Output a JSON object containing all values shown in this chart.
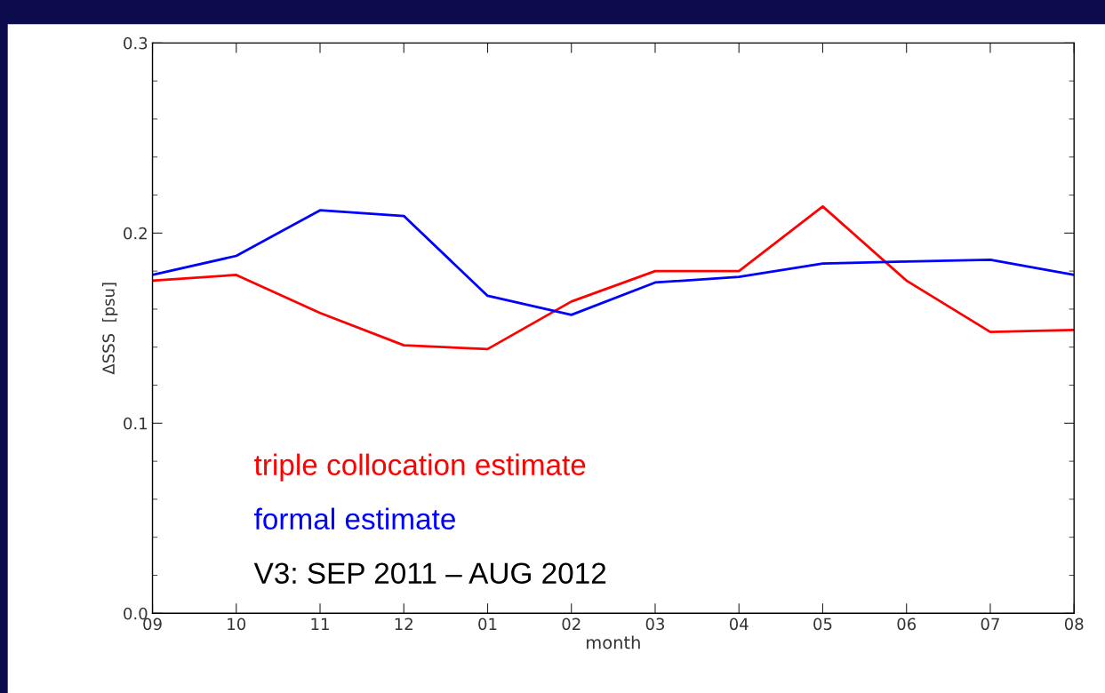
{
  "chart_data": {
    "type": "line",
    "xlabel": "month",
    "ylabel": "ΔSSS  [psu]",
    "categories": [
      "09",
      "10",
      "11",
      "12",
      "01",
      "02",
      "03",
      "04",
      "05",
      "06",
      "07",
      "08"
    ],
    "series": [
      {
        "name": "triple collocation estimate",
        "color": "#ff0000",
        "values": [
          0.175,
          0.178,
          0.158,
          0.141,
          0.139,
          0.164,
          0.18,
          0.18,
          0.214,
          0.175,
          0.148,
          0.149
        ]
      },
      {
        "name": "formal estimate",
        "color": "#0000ff",
        "values": [
          0.178,
          0.188,
          0.212,
          0.209,
          0.167,
          0.157,
          0.174,
          0.177,
          0.184,
          0.185,
          0.186,
          0.178
        ]
      }
    ],
    "ylim": [
      0.0,
      0.3
    ],
    "yticks": [
      {
        "value": 0.0,
        "label": "0.0"
      },
      {
        "value": 0.1,
        "label": "0.1"
      },
      {
        "value": 0.2,
        "label": "0.2"
      },
      {
        "value": 0.3,
        "label": "0.3"
      }
    ],
    "annotations": [
      "V3: SEP 2011 – AUG 2012"
    ],
    "legend": "bottom left",
    "grid": false,
    "marker": "none",
    "line_style": "solid"
  }
}
